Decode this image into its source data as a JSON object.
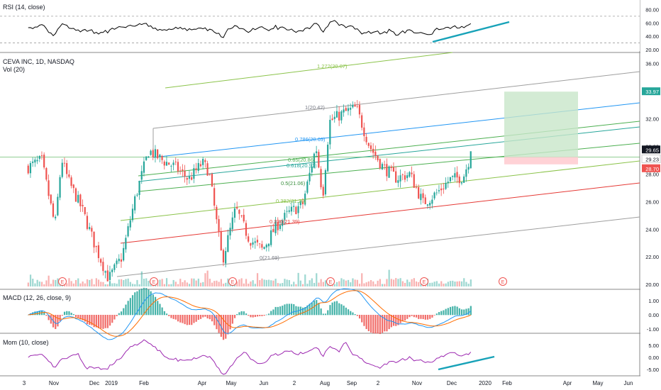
{
  "colors": {
    "up": "#26a69a",
    "down": "#ef5350",
    "rsi": "#000000",
    "macd": "#2196f3",
    "signal": "#ff6d00",
    "mom": "#9c27b0",
    "trend": "#17a2b8",
    "fib_ext": "#8bc34a",
    "fib_1": "#9e9e9e",
    "fib_786": "#2196f3",
    "fib_65": "#4caf50",
    "fib_618": "#26a69a",
    "fib_5": "#4caf50",
    "fib_382": "#8bc34a",
    "fib_236": "#e53935",
    "fib_0": "#9e9e9e",
    "target_zone": "#c8e6c9",
    "stop_zone": "#ffcdd2",
    "grid": "#e6e6e6"
  },
  "rsi_panel": {
    "title": "RSI (14, close)",
    "ticks": [
      "80.00",
      "60.00",
      "40.00",
      "20.00"
    ]
  },
  "price_panel": {
    "title": "CEVA INC, 1D, NASDAQ",
    "volume_label": "Vol (20)",
    "ticks": [
      "36.00",
      "34.00",
      "32.00",
      "30.00",
      "28.00",
      "26.00",
      "24.00",
      "22.00",
      "20.00"
    ],
    "badges": [
      {
        "text": "33.97",
        "color": "#26a69a"
      },
      {
        "text": "29.65",
        "color": "#131722"
      },
      {
        "text": "29.23",
        "color": "#ffffff"
      },
      {
        "text": "28.70",
        "color": "#ef5350"
      }
    ],
    "fib_labels": [
      {
        "text": "1.272(20.07)",
        "color": "#8bc34a"
      },
      {
        "text": "1(20.42)",
        "color": "#787b86"
      },
      {
        "text": "0.786(20.69)",
        "color": "#2196f3"
      },
      {
        "text": "0.65(20.86)",
        "color": "#4caf50"
      },
      {
        "text": "0.618(20.91)",
        "color": "#26a69a"
      },
      {
        "text": "0.5(21.06)",
        "color": "#388e3c"
      },
      {
        "text": "0.382(21.20)",
        "color": "#8bc34a"
      },
      {
        "text": "0.236(21.39)",
        "color": "#e53935"
      },
      {
        "text": "0(21.69)",
        "color": "#787b86"
      }
    ],
    "earnings_marker": "E"
  },
  "macd_panel": {
    "title": "MACD (12, 26, close, 9)",
    "ticks": [
      "1.00",
      "0.00",
      "-1.00"
    ]
  },
  "mom_panel": {
    "title": "Mom (10, close)",
    "ticks": [
      "5.00",
      "0.00",
      "-5.00"
    ]
  },
  "time_axis": {
    "labels": [
      "3",
      "Nov",
      "Dec",
      "2019",
      "Feb",
      "Apr",
      "May",
      "Jun",
      "2",
      "Aug",
      "Sep",
      "2",
      "Nov",
      "Dec",
      "2020",
      "Feb",
      "Apr",
      "May",
      "Jun"
    ]
  },
  "chart_data": {
    "type": "candlestick",
    "symbol": "CEVA INC",
    "interval": "1D",
    "exchange": "NASDAQ",
    "price_range": [
      19.8,
      36.6
    ],
    "price_ticks": [
      20,
      22,
      24,
      26,
      28,
      30,
      32,
      34,
      36
    ],
    "last_price": 29.65,
    "price_path_approx": [
      {
        "date": "2018-10-01",
        "price": 28.5
      },
      {
        "date": "2018-10-15",
        "price": 29.0
      },
      {
        "date": "2018-10-29",
        "price": 24.2
      },
      {
        "date": "2018-11-05",
        "price": 29.1
      },
      {
        "date": "2018-11-12",
        "price": 27.5
      },
      {
        "date": "2018-11-26",
        "price": 25.5
      },
      {
        "date": "2018-12-10",
        "price": 22.8
      },
      {
        "date": "2018-12-24",
        "price": 20.4
      },
      {
        "date": "2019-01-07",
        "price": 22.0
      },
      {
        "date": "2019-01-21",
        "price": 26.3
      },
      {
        "date": "2019-02-04",
        "price": 29.7
      },
      {
        "date": "2019-02-18",
        "price": 29.0
      },
      {
        "date": "2019-03-04",
        "price": 28.5
      },
      {
        "date": "2019-03-18",
        "price": 27.6
      },
      {
        "date": "2019-04-01",
        "price": 28.8
      },
      {
        "date": "2019-04-08",
        "price": 28.2
      },
      {
        "date": "2019-04-22",
        "price": 21.7
      },
      {
        "date": "2019-05-06",
        "price": 25.5
      },
      {
        "date": "2019-05-20",
        "price": 23.3
      },
      {
        "date": "2019-06-03",
        "price": 22.5
      },
      {
        "date": "2019-06-17",
        "price": 24.2
      },
      {
        "date": "2019-07-01",
        "price": 25.2
      },
      {
        "date": "2019-07-15",
        "price": 25.8
      },
      {
        "date": "2019-07-29",
        "price": 30.0
      },
      {
        "date": "2019-08-05",
        "price": 26.4
      },
      {
        "date": "2019-08-12",
        "price": 31.8
      },
      {
        "date": "2019-08-26",
        "price": 32.4
      },
      {
        "date": "2019-09-09",
        "price": 32.8
      },
      {
        "date": "2019-09-23",
        "price": 30.0
      },
      {
        "date": "2019-10-07",
        "price": 28.5
      },
      {
        "date": "2019-10-21",
        "price": 27.7
      },
      {
        "date": "2019-11-04",
        "price": 28.0
      },
      {
        "date": "2019-11-18",
        "price": 25.9
      },
      {
        "date": "2019-12-02",
        "price": 26.6
      },
      {
        "date": "2019-12-16",
        "price": 27.6
      },
      {
        "date": "2019-12-30",
        "price": 27.8
      },
      {
        "date": "2020-01-08",
        "price": 29.65
      }
    ],
    "fibonacci_channel_levels": [
      {
        "level": 1.272,
        "price": 20.07
      },
      {
        "level": 1,
        "price": 20.42
      },
      {
        "level": 0.786,
        "price": 20.69
      },
      {
        "level": 0.65,
        "price": 20.86
      },
      {
        "level": 0.618,
        "price": 20.91
      },
      {
        "level": 0.5,
        "price": 21.06
      },
      {
        "level": 0.382,
        "price": 21.2
      },
      {
        "level": 0.236,
        "price": 21.39
      },
      {
        "level": 0,
        "price": 21.69
      }
    ],
    "long_position": {
      "target": 33.97,
      "entry": 29.23,
      "stop": 28.7
    },
    "indicators": {
      "rsi": {
        "period": 14,
        "source": "close",
        "range": [
          20,
          90
        ],
        "levels": [
          70,
          30
        ]
      },
      "macd": {
        "fast": 12,
        "slow": 26,
        "source": "close",
        "signal": 9,
        "range": [
          -1.5,
          1.5
        ]
      },
      "momentum": {
        "period": 10,
        "source": "close",
        "range": [
          -7,
          7
        ]
      }
    }
  }
}
